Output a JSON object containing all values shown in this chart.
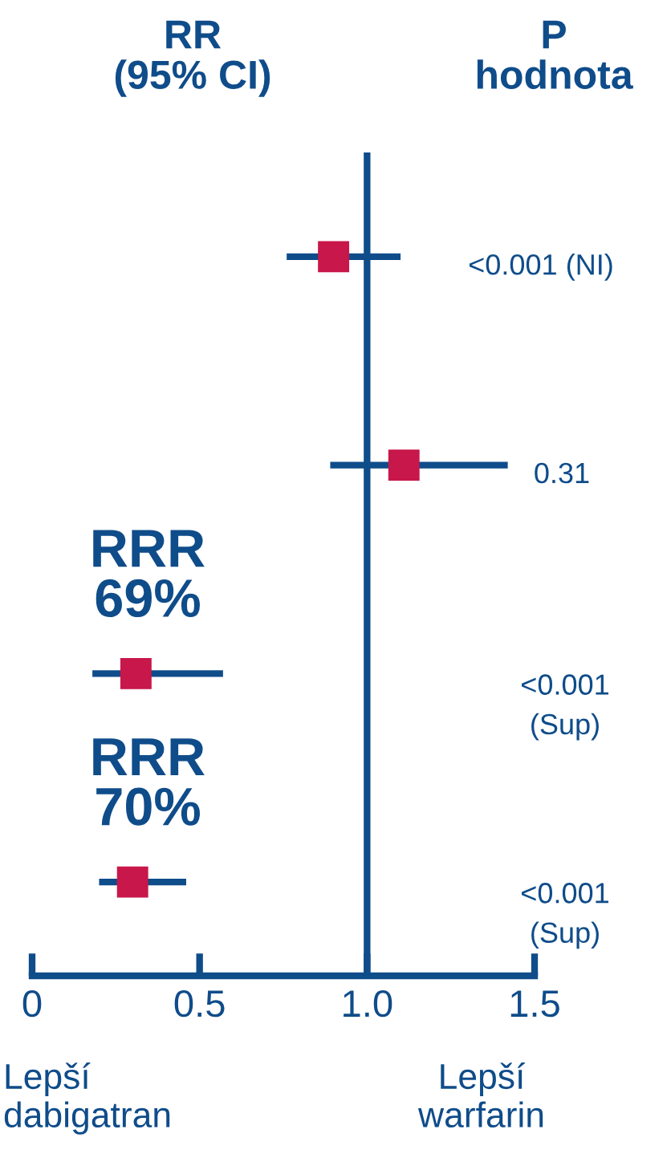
{
  "chart_data": {
    "type": "scatter",
    "orientation": "horizontal",
    "categories": [
      null,
      null,
      null,
      null
    ],
    "values": [
      0.9,
      1.11,
      0.31,
      0.3
    ],
    "errors": [
      [
        0.76,
        1.1
      ],
      [
        0.89,
        1.42
      ],
      [
        0.18,
        0.57
      ],
      [
        0.2,
        0.46
      ]
    ],
    "color": "#c8174a",
    "marker": "square",
    "xlim": [
      0,
      1.5
    ],
    "xticks": [
      0,
      0.5,
      {
        "value": 1.0,
        "label": "1.0"
      },
      {
        "value": 1.5,
        "label": "1.5"
      }
    ],
    "ref_lines": [
      {
        "axis": "x",
        "value": 1,
        "label": null,
        "color": "#0f4c8a"
      }
    ],
    "annotations": [
      "RR\n(95% CI)",
      "P\nhodnota",
      "<0.001 (NI)",
      "0.31",
      "<0.001\n(Sup)",
      "<0.001\n(Sup)",
      "RRR\n69%",
      "RRR\n70%",
      "Lepší\ndabigatran",
      "Lepší\nwarfarin"
    ],
    "grid": false,
    "legend": false
  }
}
